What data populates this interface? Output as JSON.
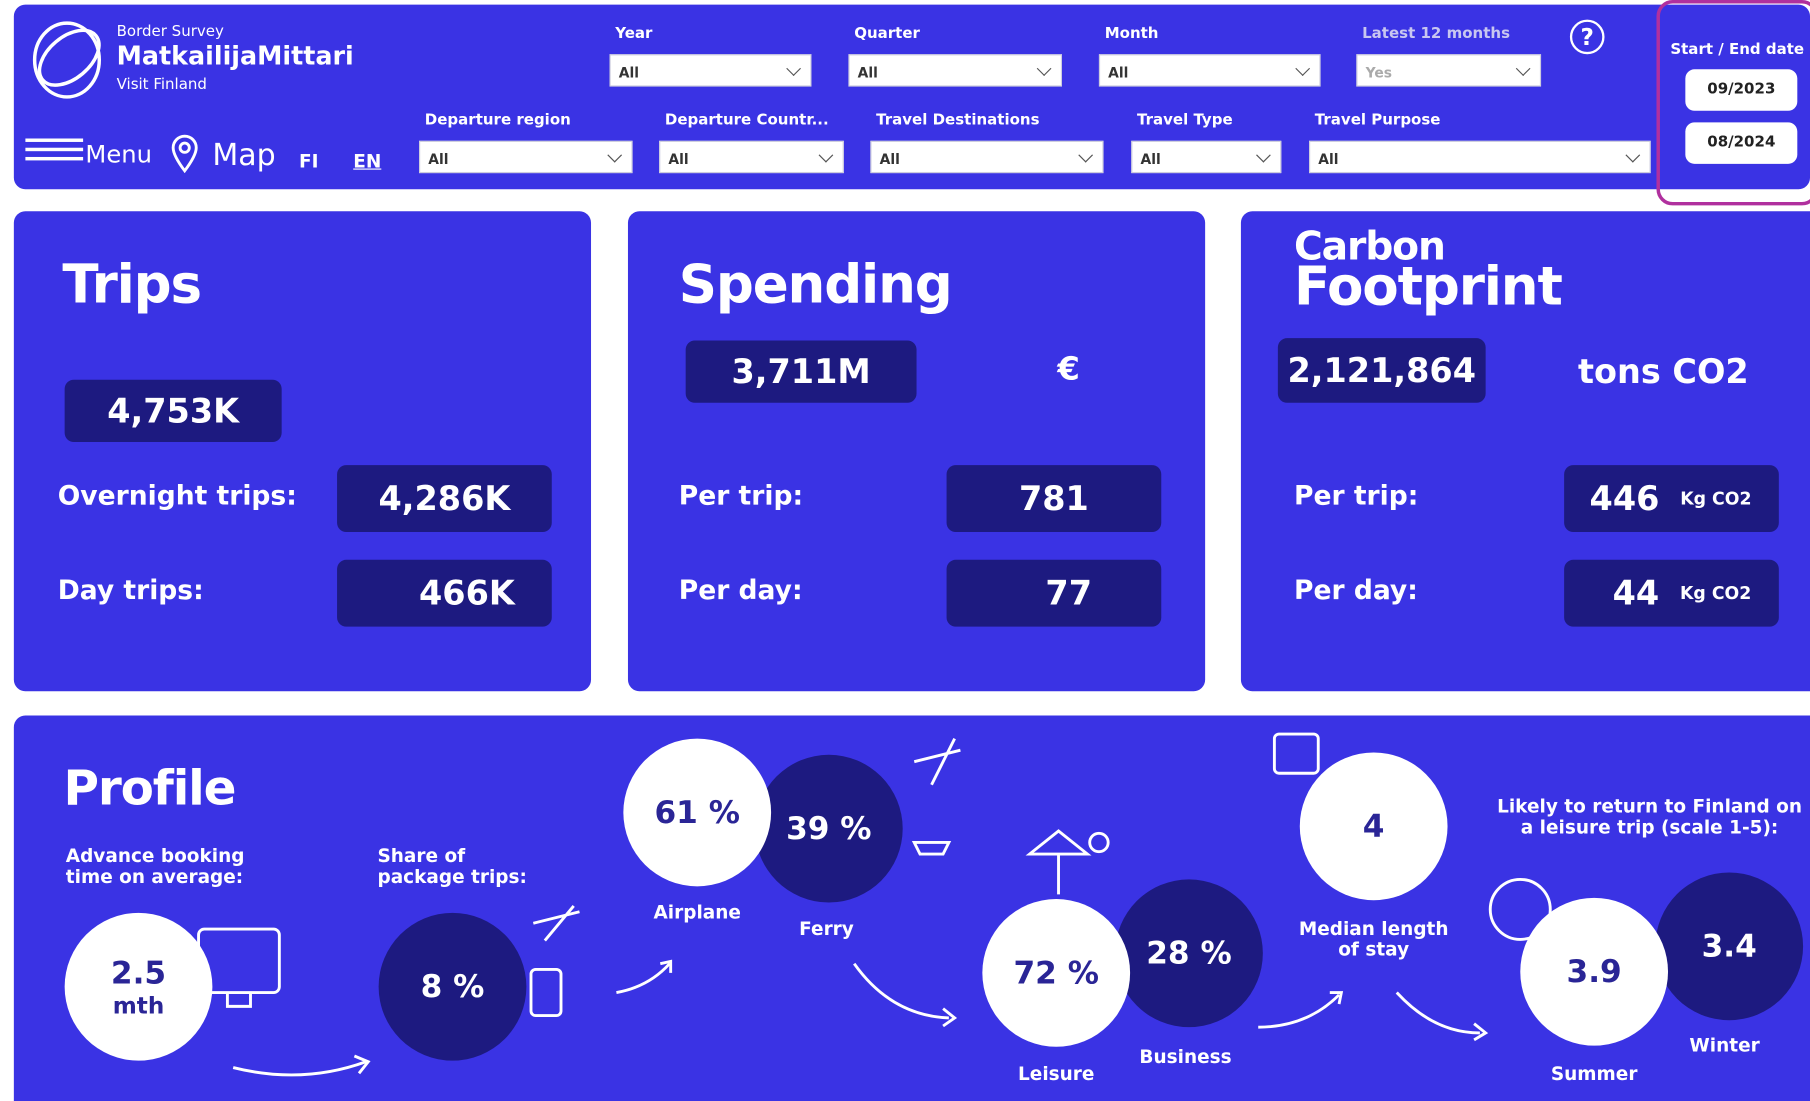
{
  "header": {
    "subtitle": "Border Survey",
    "title": "MatkailijaMittari",
    "brand": "Visit Finland"
  },
  "nav": {
    "menu": "Menu",
    "map": "Map",
    "languages": [
      "FI",
      "EN"
    ]
  },
  "filters": [
    {
      "label": "Year",
      "value": "All"
    },
    {
      "label": "Quarter",
      "value": "All"
    },
    {
      "label": "Month",
      "value": "All"
    },
    {
      "label": "Latest 12 months",
      "value": "Yes"
    },
    {
      "label": "Departure region",
      "value": "All"
    },
    {
      "label": "Departure Countr...",
      "value": "All"
    },
    {
      "label": "Travel Destinations",
      "value": "All"
    },
    {
      "label": "Travel Type",
      "value": "All"
    },
    {
      "label": "Travel Purpose",
      "value": "All"
    }
  ],
  "help": "?",
  "date_range": {
    "label": "Start / End date",
    "start": "09/2023",
    "end": "08/2024"
  },
  "cards": {
    "trips": {
      "title": "Trips",
      "total": "4,753K",
      "rows": [
        {
          "label": "Overnight trips:",
          "value": "4,286K"
        },
        {
          "label": "Day trips:",
          "value": "466K"
        }
      ]
    },
    "spending": {
      "title": "Spending",
      "total": "3,711M",
      "unit": "€",
      "rows": [
        {
          "label": "Per trip:",
          "value": "781"
        },
        {
          "label": "Per day:",
          "value": "77"
        }
      ]
    },
    "carbon": {
      "title_line1": "Carbon",
      "title_line2": "Footprint",
      "total": "2,121,864",
      "unit": "tons CO2",
      "rows": [
        {
          "label": "Per trip:",
          "value": "446",
          "unit": "Kg CO2"
        },
        {
          "label": "Per day:",
          "value": "44",
          "unit": "Kg CO2"
        }
      ]
    }
  },
  "profile": {
    "title": "Profile",
    "booking": {
      "label": "Advance booking time on average:",
      "value": "2.5",
      "unit": "mth"
    },
    "package": {
      "label": "Share of package trips:",
      "value": "8 %"
    },
    "transport": [
      {
        "label": "Airplane",
        "value": "61 %"
      },
      {
        "label": "Ferry",
        "value": "39 %"
      }
    ],
    "purpose": [
      {
        "label": "Leisure",
        "value": "72 %"
      },
      {
        "label": "Business",
        "value": "28 %"
      }
    ],
    "stay": {
      "label": "Median length of stay",
      "value": "4"
    },
    "return": {
      "label": "Likely to return to Finland on a leisure trip (scale 1-5):",
      "seasons": [
        {
          "label": "Summer",
          "value": "3.9"
        },
        {
          "label": "Winter",
          "value": "3.4"
        }
      ]
    }
  }
}
